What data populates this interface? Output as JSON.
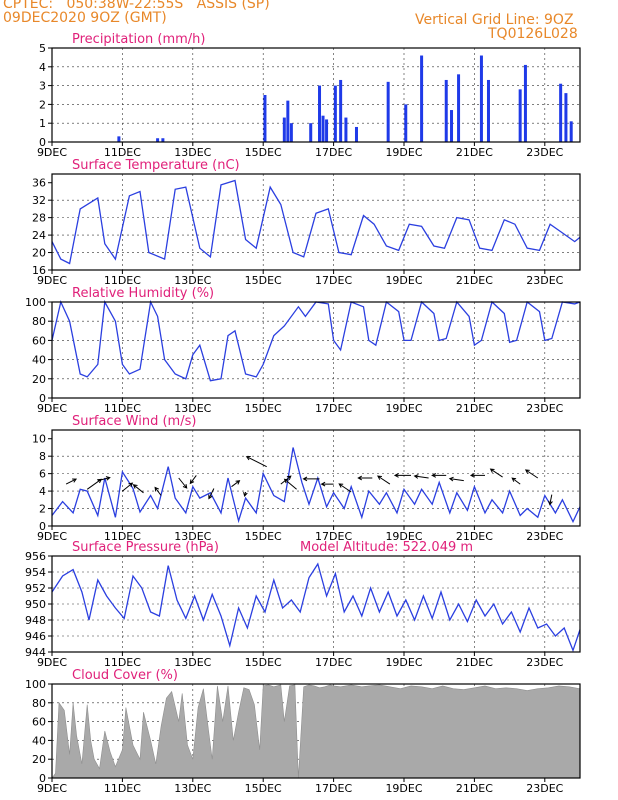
{
  "header": {
    "line1": "CPTEC:   050:38W-22:55S   ASSIS (SP)",
    "line2": "09DEC2020 9OZ (GMT)",
    "grid_note": "Vertical Grid Line: 9OZ",
    "code": "TQ0126L028"
  },
  "colors": {
    "header": "#e8882a",
    "title": "#e0217a",
    "line": "#2b3fe0",
    "bar": "#1f3ae8",
    "cloud": "#a9a9a9"
  },
  "chart_data": [
    {
      "id": "precip",
      "type": "bar",
      "title": "Precipitation (mm/h)",
      "xlim": [
        0,
        15
      ],
      "ylim": [
        0,
        5
      ],
      "yticks": [
        0,
        1,
        2,
        3,
        4,
        5
      ],
      "xticks": [
        "9DEC",
        "11DEC",
        "13DEC",
        "15DEC",
        "17DEC",
        "19DEC",
        "21DEC",
        "23DEC"
      ],
      "x": [
        1.9,
        3.0,
        3.15,
        6.05,
        6.6,
        6.7,
        6.8,
        7.35,
        7.6,
        7.7,
        7.8,
        8.05,
        8.2,
        8.35,
        8.65,
        9.55,
        10.05,
        10.5,
        11.2,
        11.35,
        11.55,
        12.2,
        12.4,
        13.3,
        13.45,
        14.45,
        14.6,
        14.75
      ],
      "values": [
        0.3,
        0.2,
        0.2,
        2.5,
        1.3,
        2.2,
        1.0,
        1.0,
        3.0,
        1.4,
        1.2,
        3.0,
        3.3,
        1.3,
        0.8,
        3.2,
        2.0,
        4.6,
        3.3,
        1.7,
        3.6,
        4.6,
        3.3,
        2.8,
        4.1,
        3.1,
        2.6,
        1.1
      ]
    },
    {
      "id": "temp",
      "type": "line",
      "title": "Surface Temperature (nC)",
      "xlim": [
        0,
        15
      ],
      "ylim": [
        16,
        38
      ],
      "yticks": [
        16,
        20,
        24,
        28,
        32,
        36
      ],
      "xticks": [
        "9DEC",
        "11DEC",
        "13DEC",
        "15DEC",
        "17DEC",
        "19DEC",
        "21DEC",
        "23DEC"
      ],
      "x": [
        0,
        0.25,
        0.5,
        0.8,
        1.3,
        1.5,
        1.8,
        2.2,
        2.5,
        2.75,
        3.2,
        3.5,
        3.8,
        4.2,
        4.5,
        4.8,
        5.2,
        5.5,
        5.8,
        6.2,
        6.5,
        6.85,
        7.15,
        7.5,
        7.85,
        8.15,
        8.5,
        8.85,
        9.15,
        9.5,
        9.85,
        10.15,
        10.5,
        10.85,
        11.15,
        11.5,
        11.85,
        12.15,
        12.5,
        12.85,
        13.15,
        13.5,
        13.85,
        14.15,
        14.5,
        14.85,
        15
      ],
      "values": [
        22.5,
        18.5,
        17.5,
        30,
        32.5,
        22,
        18.5,
        33,
        34,
        20,
        18.5,
        34.5,
        35,
        21,
        19,
        35.5,
        36.5,
        23,
        21,
        35,
        31,
        20,
        19,
        29,
        30,
        20,
        19.5,
        28.5,
        26.5,
        21.5,
        20.5,
        26.5,
        26,
        21.5,
        21,
        28,
        27.5,
        21,
        20.5,
        27.5,
        26.5,
        21,
        20.5,
        26.5,
        24.5,
        22.5,
        23.5
      ]
    },
    {
      "id": "rh",
      "type": "line",
      "title": "Relative Humidity (%)",
      "xlim": [
        0,
        15
      ],
      "ylim": [
        0,
        100
      ],
      "yticks": [
        0,
        20,
        40,
        60,
        80,
        100
      ],
      "xticks": [
        "9DEC",
        "11DEC",
        "13DEC",
        "15DEC",
        "17DEC",
        "19DEC",
        "21DEC",
        "23DEC"
      ],
      "x": [
        0,
        0.25,
        0.5,
        0.8,
        1.0,
        1.3,
        1.5,
        1.8,
        2.0,
        2.2,
        2.5,
        2.8,
        3.0,
        3.2,
        3.5,
        3.8,
        4.0,
        4.2,
        4.5,
        4.8,
        5.0,
        5.2,
        5.5,
        5.8,
        6.0,
        6.3,
        6.6,
        7.0,
        7.2,
        7.5,
        7.85,
        8.0,
        8.2,
        8.5,
        8.85,
        9.0,
        9.2,
        9.5,
        9.85,
        10.0,
        10.2,
        10.5,
        10.85,
        11.0,
        11.2,
        11.5,
        11.85,
        12.0,
        12.2,
        12.5,
        12.85,
        13.0,
        13.2,
        13.5,
        13.85,
        14.0,
        14.2,
        14.5,
        14.85,
        15
      ],
      "values": [
        60,
        100,
        80,
        25,
        22,
        35,
        100,
        80,
        35,
        25,
        30,
        100,
        85,
        40,
        25,
        20,
        45,
        55,
        18,
        20,
        65,
        70,
        25,
        22,
        35,
        65,
        75,
        95,
        85,
        100,
        98,
        60,
        50,
        100,
        95,
        60,
        55,
        100,
        90,
        60,
        60,
        100,
        88,
        60,
        62,
        100,
        85,
        55,
        60,
        100,
        88,
        58,
        60,
        100,
        90,
        60,
        62,
        100,
        98,
        100
      ]
    },
    {
      "id": "wind",
      "type": "line",
      "title": "Surface Wind (m/s)",
      "xlim": [
        0,
        15
      ],
      "ylim": [
        0,
        11
      ],
      "yticks": [
        0,
        2,
        4,
        6,
        8,
        10
      ],
      "xticks": [
        "9DEC",
        "11DEC",
        "13DEC",
        "15DEC",
        "17DEC",
        "19DEC",
        "21DEC",
        "23DEC"
      ],
      "x": [
        0,
        0.3,
        0.6,
        0.8,
        1.0,
        1.3,
        1.5,
        1.8,
        2.0,
        2.3,
        2.5,
        2.8,
        3.0,
        3.3,
        3.5,
        3.8,
        4.0,
        4.2,
        4.5,
        4.8,
        5.0,
        5.3,
        5.5,
        5.8,
        6.0,
        6.3,
        6.6,
        6.85,
        7.1,
        7.3,
        7.55,
        7.8,
        8.0,
        8.3,
        8.5,
        8.8,
        9.0,
        9.3,
        9.5,
        9.8,
        10.0,
        10.3,
        10.5,
        10.8,
        11.0,
        11.3,
        11.5,
        11.8,
        12.0,
        12.3,
        12.5,
        12.8,
        13.0,
        13.3,
        13.5,
        13.8,
        14.0,
        14.3,
        14.5,
        14.8,
        15
      ],
      "values": [
        1.2,
        2.8,
        1.5,
        4.2,
        4.0,
        1.2,
        5.5,
        1.0,
        6.2,
        4.3,
        1.6,
        3.5,
        2.0,
        6.8,
        3.2,
        1.5,
        4.5,
        3.2,
        3.8,
        1.5,
        5.5,
        0.6,
        3.2,
        1.5,
        6.0,
        3.5,
        2.8,
        9.0,
        5.0,
        2.5,
        5.5,
        2.2,
        3.8,
        2.0,
        4.5,
        1.0,
        4.0,
        2.5,
        3.8,
        1.5,
        4.2,
        2.5,
        4.2,
        2.5,
        5.0,
        1.5,
        3.8,
        1.8,
        4.5,
        1.5,
        3.0,
        1.5,
        4.0,
        1.2,
        2.0,
        1.0,
        3.5,
        1.5,
        3.0,
        0.5,
        2.2
      ],
      "arrows": {
        "x": [
          0.4,
          1.0,
          1.3,
          2.0,
          2.6,
          3.1,
          3.6,
          4.1,
          4.6,
          5.1,
          5.5,
          6.1,
          6.5,
          6.95,
          7.6,
          8.0,
          8.5,
          9.1,
          9.6,
          10.2,
          10.7,
          11.2,
          11.7,
          12.3,
          12.8,
          13.3,
          13.8,
          14.2
        ],
        "y": [
          4.8,
          4.2,
          5.2,
          4.0,
          3.8,
          3.5,
          5.5,
          5.8,
          4.3,
          4.5,
          3.9,
          6.8,
          4.8,
          4.2,
          5.4,
          4.8,
          3.9,
          5.5,
          4.8,
          5.8,
          5.5,
          5.8,
          5.2,
          5.8,
          5.6,
          4.8,
          5.5,
          3.6
        ],
        "u": [
          10,
          14,
          12,
          10,
          -10,
          -6,
          8,
          -6,
          -5,
          8,
          -1,
          -20,
          10,
          -12,
          -16,
          -12,
          -12,
          -14,
          -12,
          -16,
          -14,
          -14,
          -14,
          -14,
          -12,
          -8,
          -12,
          -2
        ],
        "v": [
          5,
          10,
          3,
          8,
          8,
          8,
          -10,
          -8,
          -10,
          6,
          -4,
          10,
          8,
          10,
          0,
          0,
          8,
          0,
          8,
          0,
          2,
          0,
          2,
          0,
          8,
          6,
          8,
          -10
        ]
      }
    },
    {
      "id": "pressure",
      "type": "line",
      "title": "Surface Pressure (hPa)",
      "annotation": "Model Altitude: 522.049 m",
      "xlim": [
        0,
        15
      ],
      "ylim": [
        944,
        956
      ],
      "yticks": [
        944,
        946,
        948,
        950,
        952,
        954,
        956
      ],
      "xticks": [
        "9DEC",
        "11DEC",
        "13DEC",
        "15DEC",
        "17DEC",
        "19DEC",
        "21DEC",
        "23DEC"
      ],
      "x": [
        0,
        0.3,
        0.6,
        0.85,
        1.05,
        1.3,
        1.55,
        1.8,
        2.05,
        2.3,
        2.55,
        2.8,
        3.05,
        3.3,
        3.55,
        3.8,
        4.05,
        4.3,
        4.55,
        4.8,
        5.05,
        5.3,
        5.55,
        5.8,
        6.05,
        6.3,
        6.55,
        6.8,
        7.05,
        7.3,
        7.55,
        7.8,
        8.05,
        8.3,
        8.55,
        8.8,
        9.05,
        9.3,
        9.55,
        9.8,
        10.05,
        10.3,
        10.55,
        10.8,
        11.05,
        11.3,
        11.55,
        11.8,
        12.05,
        12.3,
        12.55,
        12.8,
        13.05,
        13.3,
        13.55,
        13.8,
        14.05,
        14.3,
        14.55,
        14.8,
        15
      ],
      "values": [
        951.5,
        953.5,
        954.3,
        951.5,
        948.0,
        953.0,
        951.0,
        949.5,
        948.2,
        953.5,
        952.0,
        949.0,
        948.5,
        954.8,
        950.5,
        948.2,
        951.0,
        948.0,
        951.2,
        948.5,
        944.8,
        949.5,
        947.0,
        951.0,
        949.0,
        953.0,
        949.5,
        950.5,
        949.0,
        953.3,
        955.0,
        951.0,
        953.8,
        949.0,
        951.0,
        948.5,
        952.0,
        949.0,
        951.5,
        948.5,
        950.5,
        948.0,
        951.0,
        948.2,
        951.5,
        948.0,
        950.0,
        947.8,
        950.5,
        948.5,
        950.0,
        947.5,
        949.0,
        946.5,
        949.5,
        947.0,
        947.5,
        946.0,
        947.0,
        944.2,
        946.8
      ]
    },
    {
      "id": "cloud",
      "type": "area",
      "title": "Cloud Cover (%)",
      "xlim": [
        0,
        15
      ],
      "ylim": [
        0,
        100
      ],
      "yticks": [
        0,
        20,
        40,
        60,
        80,
        100
      ],
      "xticks": [
        "9DEC",
        "11DEC",
        "13DEC",
        "15DEC",
        "17DEC",
        "19DEC",
        "21DEC",
        "23DEC"
      ],
      "x": [
        0,
        0.1,
        0.2,
        0.35,
        0.5,
        0.6,
        0.7,
        0.85,
        1.0,
        1.1,
        1.2,
        1.35,
        1.5,
        1.65,
        1.8,
        2.0,
        2.1,
        2.3,
        2.5,
        2.6,
        2.8,
        2.95,
        3.1,
        3.25,
        3.4,
        3.6,
        3.7,
        3.85,
        4.0,
        4.15,
        4.3,
        4.45,
        4.55,
        4.7,
        4.85,
        5.0,
        5.15,
        5.3,
        5.45,
        5.6,
        5.75,
        5.9,
        6.0,
        6.15,
        6.3,
        6.5,
        6.6,
        6.75,
        6.9,
        7.0,
        7.15,
        7.3,
        7.45,
        7.6,
        7.75,
        7.9,
        8.0,
        8.2,
        8.5,
        8.8,
        9.0,
        9.3,
        9.6,
        9.9,
        10.2,
        10.5,
        10.8,
        11.1,
        11.4,
        11.7,
        12.0,
        12.3,
        12.6,
        12.9,
        13.2,
        13.5,
        13.8,
        14.1,
        14.4,
        14.7,
        15
      ],
      "values": [
        0,
        5,
        80,
        72,
        25,
        80,
        45,
        15,
        78,
        40,
        20,
        10,
        50,
        28,
        12,
        30,
        75,
        35,
        20,
        70,
        40,
        15,
        55,
        85,
        92,
        60,
        90,
        35,
        20,
        75,
        95,
        50,
        20,
        98,
        60,
        98,
        40,
        70,
        96,
        94,
        78,
        30,
        98,
        99,
        97,
        99,
        60,
        98,
        99,
        0,
        97,
        99,
        98,
        96,
        97,
        99,
        98,
        97,
        99,
        97,
        98,
        99,
        97,
        95,
        98,
        97,
        95,
        98,
        95,
        94,
        96,
        98,
        95,
        96,
        95,
        93,
        95,
        96,
        98,
        97,
        95
      ]
    }
  ]
}
